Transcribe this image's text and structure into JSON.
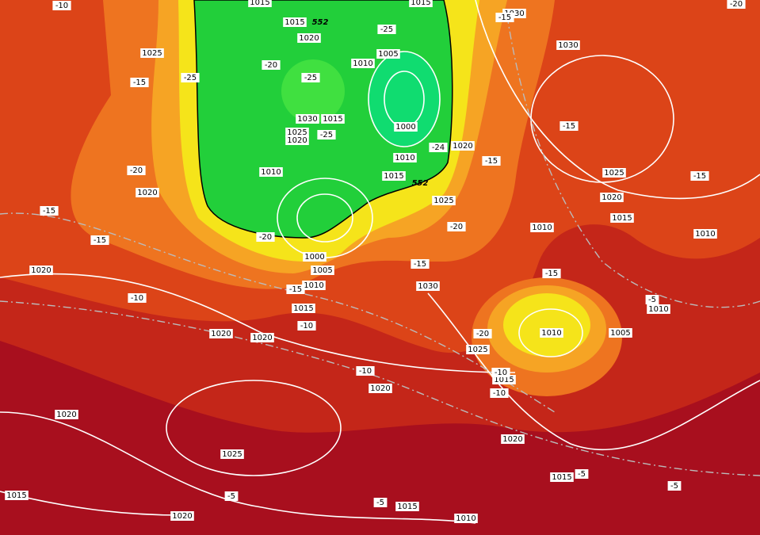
{
  "isobar_labels": [
    "1015",
    "1015",
    "1020",
    "1025",
    "1010",
    "1005",
    "1030",
    "1015",
    "1025",
    "1020",
    "1000",
    "1010",
    "1010",
    "1015",
    "1020",
    "1025",
    "1020",
    "1000",
    "1005",
    "1010",
    "1015",
    "1020",
    "1020",
    "1020",
    "1030",
    "1025",
    "1010",
    "1015",
    "1020",
    "1020",
    "1025",
    "1020",
    "1015",
    "1015",
    "1020",
    "1015",
    "1010",
    "1030",
    "1030",
    "1025",
    "1020",
    "1015",
    "1010",
    "1010",
    "1010",
    "1005",
    "1015"
  ],
  "temperature_labels": [
    "-10",
    "-15",
    "-25",
    "-20",
    "-25",
    "-25",
    "-25",
    "-20",
    "-15",
    "-15",
    "-20",
    "-15",
    "-20",
    "-24",
    "-15",
    "-15",
    "-10",
    "-10",
    "-15",
    "-15",
    "-15",
    "-20",
    "-10",
    "-10",
    "-10",
    "-5",
    "-5",
    "-5",
    "-5",
    "-5",
    "-20",
    "-15"
  ],
  "thickness_labels": [
    "552",
    "552"
  ]
}
